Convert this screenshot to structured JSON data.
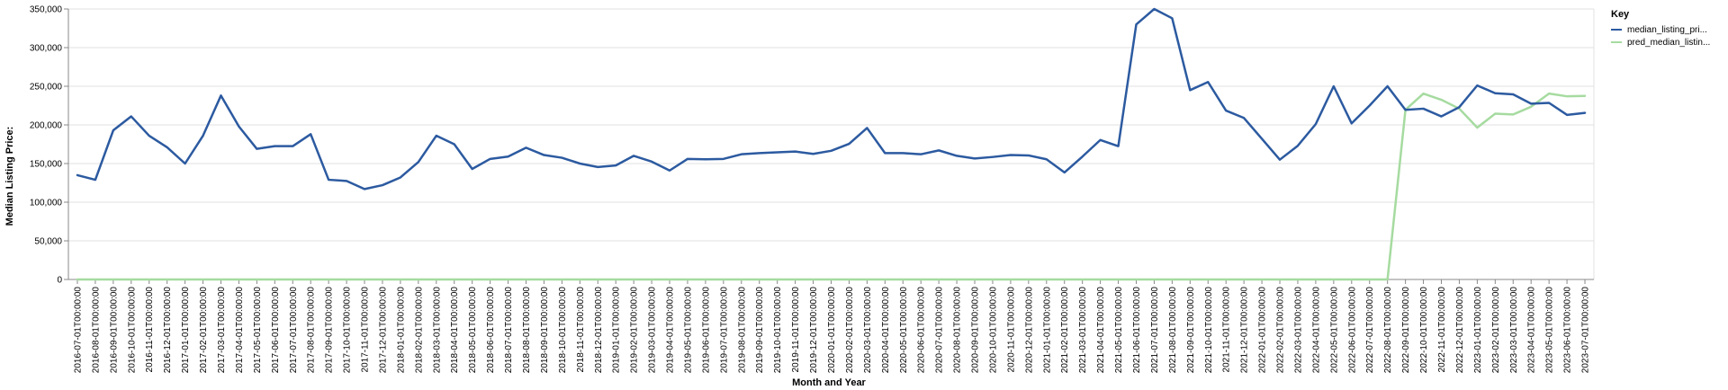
{
  "chart_data": {
    "type": "line",
    "xlabel": "Month and Year",
    "ylabel": "Median Listing Price:",
    "ylim": [
      0,
      350000
    ],
    "yticks": [
      "0",
      "50,000",
      "100,000",
      "150,000",
      "200,000",
      "250,000",
      "300,000",
      "350,000"
    ],
    "grid": true,
    "legend": {
      "title": "Key",
      "placement": "top-right",
      "labels": [
        "median_listing_pri...",
        "pred_median_listin..."
      ]
    },
    "x": [
      "2016-07-01T00:00:00",
      "2016-08-01T00:00:00",
      "2016-09-01T00:00:00",
      "2016-10-01T00:00:00",
      "2016-11-01T00:00:00",
      "2016-12-01T00:00:00",
      "2017-01-01T00:00:00",
      "2017-02-01T00:00:00",
      "2017-03-01T00:00:00",
      "2017-04-01T00:00:00",
      "2017-05-01T00:00:00",
      "2017-06-01T00:00:00",
      "2017-07-01T00:00:00",
      "2017-08-01T00:00:00",
      "2017-09-01T00:00:00",
      "2017-10-01T00:00:00",
      "2017-11-01T00:00:00",
      "2017-12-01T00:00:00",
      "2018-01-01T00:00:00",
      "2018-02-01T00:00:00",
      "2018-03-01T00:00:00",
      "2018-04-01T00:00:00",
      "2018-05-01T00:00:00",
      "2018-06-01T00:00:00",
      "2018-07-01T00:00:00",
      "2018-08-01T00:00:00",
      "2018-09-01T00:00:00",
      "2018-10-01T00:00:00",
      "2018-11-01T00:00:00",
      "2018-12-01T00:00:00",
      "2019-01-01T00:00:00",
      "2019-02-01T00:00:00",
      "2019-03-01T00:00:00",
      "2019-04-01T00:00:00",
      "2019-05-01T00:00:00",
      "2019-06-01T00:00:00",
      "2019-07-01T00:00:00",
      "2019-08-01T00:00:00",
      "2019-09-01T00:00:00",
      "2019-10-01T00:00:00",
      "2019-11-01T00:00:00",
      "2019-12-01T00:00:00",
      "2020-01-01T00:00:00",
      "2020-02-01T00:00:00",
      "2020-03-01T00:00:00",
      "2020-04-01T00:00:00",
      "2020-05-01T00:00:00",
      "2020-06-01T00:00:00",
      "2020-07-01T00:00:00",
      "2020-08-01T00:00:00",
      "2020-09-01T00:00:00",
      "2020-10-01T00:00:00",
      "2020-11-01T00:00:00",
      "2020-12-01T00:00:00",
      "2021-01-01T00:00:00",
      "2021-02-01T00:00:00",
      "2021-03-01T00:00:00",
      "2021-04-01T00:00:00",
      "2021-05-01T00:00:00",
      "2021-06-01T00:00:00",
      "2021-07-01T00:00:00",
      "2021-08-01T00:00:00",
      "2021-09-01T00:00:00",
      "2021-10-01T00:00:00",
      "2021-11-01T00:00:00",
      "2021-12-01T00:00:00",
      "2022-01-01T00:00:00",
      "2022-02-01T00:00:00",
      "2022-03-01T00:00:00",
      "2022-04-01T00:00:00",
      "2022-05-01T00:00:00",
      "2022-06-01T00:00:00",
      "2022-07-01T00:00:00",
      "2022-08-01T00:00:00",
      "2022-09-01T00:00:00",
      "2022-10-01T00:00:00",
      "2022-11-01T00:00:00",
      "2022-12-01T00:00:00",
      "2023-01-01T00:00:00",
      "2023-02-01T00:00:00",
      "2023-03-01T00:00:00",
      "2023-04-01T00:00:00",
      "2023-05-01T00:00:00",
      "2023-06-01T00:00:00",
      "2023-07-01T00:00:00"
    ],
    "series": [
      {
        "name": "median_listing_pri...",
        "color": "#2c5aa0",
        "values": [
          135000,
          129000,
          193000,
          211000,
          186000,
          171000,
          150000,
          186000,
          238000,
          198000,
          169000,
          172500,
          172500,
          188000,
          129000,
          127500,
          117000,
          122000,
          132000,
          152000,
          186000,
          175000,
          143000,
          156000,
          159000,
          170500,
          161000,
          157500,
          150000,
          145500,
          147500,
          160000,
          152500,
          141000,
          156000,
          155500,
          156000,
          162000,
          163500,
          164500,
          165500,
          162500,
          166500,
          175500,
          196000,
          163500,
          163500,
          162000,
          167000,
          160000,
          156500,
          158500,
          161000,
          160500,
          155500,
          138500,
          159000,
          180500,
          172500,
          330000,
          350000,
          338000,
          245000,
          255500,
          218500,
          209000,
          182000,
          155000,
          173000,
          201000,
          250000,
          202000,
          225000,
          250000,
          219500,
          221000,
          211000,
          223000,
          251000,
          241000,
          239500,
          227500,
          228500,
          213000,
          215500
        ]
      },
      {
        "name": "pred_median_listin...",
        "color": "#a6dba0",
        "values": [
          0,
          0,
          0,
          0,
          0,
          0,
          0,
          0,
          0,
          0,
          0,
          0,
          0,
          0,
          0,
          0,
          0,
          0,
          0,
          0,
          0,
          0,
          0,
          0,
          0,
          0,
          0,
          0,
          0,
          0,
          0,
          0,
          0,
          0,
          0,
          0,
          0,
          0,
          0,
          0,
          0,
          0,
          0,
          0,
          0,
          0,
          0,
          0,
          0,
          0,
          0,
          0,
          0,
          0,
          0,
          0,
          0,
          0,
          0,
          0,
          0,
          0,
          0,
          0,
          0,
          0,
          0,
          0,
          0,
          0,
          0,
          0,
          0,
          0,
          219500,
          240500,
          232500,
          221000,
          196500,
          214500,
          213500,
          223500,
          240500,
          237000,
          237500
        ]
      }
    ]
  }
}
